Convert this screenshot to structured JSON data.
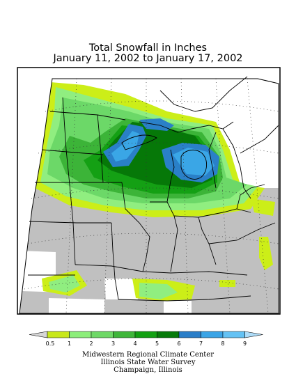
{
  "title": {
    "line1": "Total Snowfall in Inches",
    "line2": "January 11, 2002 to January 17, 2002"
  },
  "legend": {
    "tick_labels": [
      "0.5",
      "1",
      "2",
      "3",
      "4",
      "5",
      "6",
      "7",
      "8",
      "9"
    ],
    "colors": [
      "#d6d6d6",
      "#c8e81a",
      "#8cee7a",
      "#6ed866",
      "#3fb63a",
      "#12a012",
      "#067a0a",
      "#2a7ec8",
      "#3aa4e6",
      "#64c2f4",
      "#aedcf8"
    ]
  },
  "credits": {
    "line1": "Midwestern Regional Climate Center",
    "line2": "Illinois State Water Survey",
    "line3": "Champaign, Illinois"
  },
  "colors": {
    "no_snow": "#c0c0c0",
    "missing": "#ffffff",
    "lt_1": "#ccee18",
    "1_2": "#90ee80",
    "2_3": "#6cd868",
    "3_4": "#3cb438",
    "4_5": "#14a014",
    "5_6": "#067808",
    "6_7": "#2a80c8",
    "7_8": "#3aa6e6"
  }
}
